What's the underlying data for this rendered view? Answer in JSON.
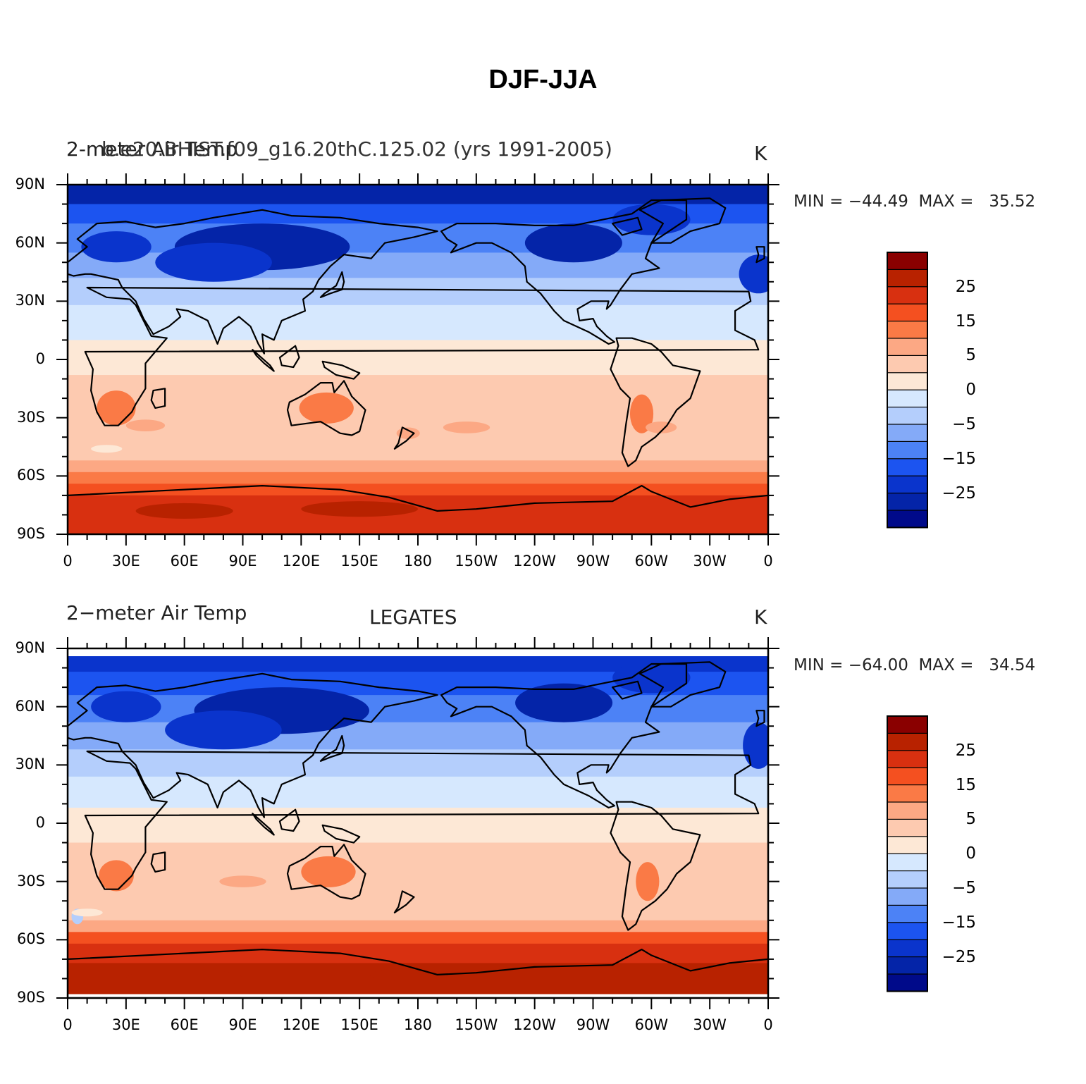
{
  "figure": {
    "main_title": "DJF-JJA"
  },
  "panels": [
    {
      "left_title": "2-meter Air Temp",
      "overlay_left_title": "b.e20.BHIST.f09_g16.20thC.125.02 (yrs 1991-2005)",
      "center_title": "",
      "units": "K",
      "min_label": "MIN = ",
      "min_value": "−44.49",
      "max_label": "MAX = ",
      "max_value": "35.52"
    },
    {
      "left_title": "2−meter Air Temp",
      "overlay_left_title": "",
      "center_title": "LEGATES",
      "units": "K",
      "min_label": "MIN = ",
      "min_value": "−64.00",
      "max_label": "MAX = ",
      "max_value": "34.54"
    }
  ],
  "axes": {
    "y_ticks": [
      "90N",
      "60N",
      "30N",
      "0",
      "30S",
      "60S",
      "90S"
    ],
    "x_ticks": [
      "0",
      "30E",
      "60E",
      "90E",
      "120E",
      "150E",
      "180",
      "150W",
      "120W",
      "90W",
      "60W",
      "30W",
      "0"
    ]
  },
  "colorbar": {
    "labels": [
      "25",
      "15",
      "5",
      "0",
      "−5",
      "−15",
      "−25"
    ],
    "colors": [
      "#8a0000",
      "#b82200",
      "#d83010",
      "#f45020",
      "#fa7a46",
      "#fca884",
      "#fdcab0",
      "#fde8d6",
      "#d6e8fe",
      "#b4cefc",
      "#84aaf8",
      "#4c82f6",
      "#1c54f0",
      "#0a34cc",
      "#0424a8",
      "#000a8a"
    ]
  },
  "map_colors": {
    "deep_cold": "#0424a8",
    "cold": "#0a34cc",
    "cool": "#1c54f0",
    "mild_cool": "#4c82f6",
    "light_cool": "#84aaf8",
    "pale_cool": "#b4cefc",
    "near_zero_cool": "#d6e8fe",
    "near_zero_warm": "#fde8d6",
    "pale_warm": "#fdcab0",
    "light_warm": "#fca884",
    "warm": "#fa7a46",
    "hot": "#f45020",
    "hotter": "#d83010",
    "hottest": "#b82200",
    "coast_line": "#000000"
  }
}
